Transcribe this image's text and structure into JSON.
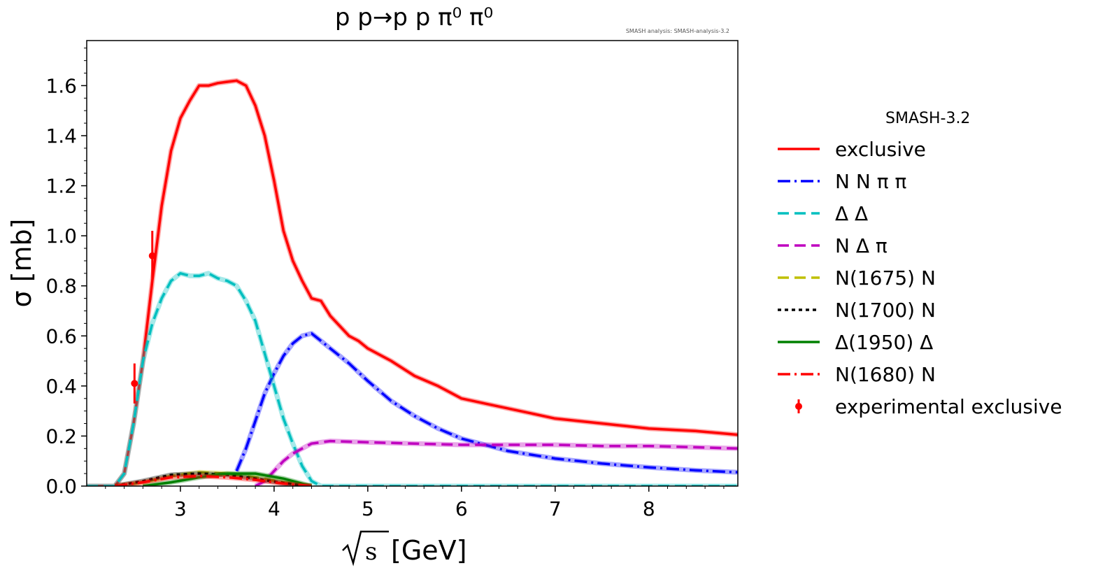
{
  "chart_data": {
    "type": "line",
    "title": "p p→p p π⁰ π⁰",
    "watermark": "SMASH analysis: SMASH-analysis-3.2",
    "xlabel_prefix": "√s",
    "xlabel_unit": "[GeV]",
    "ylabel": "σ [mb]",
    "xlim": [
      2.0,
      8.95
    ],
    "ylim": [
      0.0,
      1.78
    ],
    "xticks": [
      3,
      4,
      5,
      6,
      7,
      8
    ],
    "yticks": [
      0.0,
      0.2,
      0.4,
      0.6,
      0.8,
      1.0,
      1.2,
      1.4,
      1.6
    ],
    "ytick_labels": [
      "0.0",
      "0.2",
      "0.4",
      "0.6",
      "0.8",
      "1.0",
      "1.2",
      "1.4",
      "1.6"
    ],
    "legend_title": "SMASH-3.2",
    "legend_position": "right, outside plot",
    "series": [
      {
        "name": "exclusive",
        "color": "#ff0000",
        "style": "solid",
        "x": [
          2.0,
          2.3,
          2.4,
          2.5,
          2.6,
          2.7,
          2.8,
          2.9,
          3.0,
          3.1,
          3.2,
          3.3,
          3.4,
          3.5,
          3.6,
          3.7,
          3.8,
          3.9,
          4.0,
          4.1,
          4.2,
          4.3,
          4.4,
          4.5,
          4.6,
          4.7,
          4.8,
          4.9,
          5.0,
          5.25,
          5.5,
          5.75,
          6.0,
          6.25,
          6.5,
          6.75,
          7.0,
          7.5,
          8.0,
          8.5,
          8.95
        ],
        "y": [
          0.0,
          0.0,
          0.05,
          0.25,
          0.5,
          0.82,
          1.12,
          1.34,
          1.47,
          1.54,
          1.6,
          1.6,
          1.61,
          1.615,
          1.62,
          1.6,
          1.52,
          1.4,
          1.22,
          1.02,
          0.9,
          0.82,
          0.75,
          0.74,
          0.68,
          0.64,
          0.6,
          0.58,
          0.55,
          0.5,
          0.44,
          0.4,
          0.35,
          0.33,
          0.31,
          0.29,
          0.27,
          0.25,
          0.23,
          0.22,
          0.205
        ]
      },
      {
        "name": "N N π π",
        "color": "#0000ff",
        "style": "dashdot",
        "x": [
          3.6,
          3.7,
          3.8,
          3.9,
          4.0,
          4.1,
          4.2,
          4.3,
          4.4,
          4.5,
          4.6,
          4.8,
          5.0,
          5.25,
          5.5,
          5.75,
          6.0,
          6.5,
          7.0,
          7.5,
          8.0,
          8.5,
          8.95
        ],
        "y": [
          0.06,
          0.15,
          0.26,
          0.37,
          0.45,
          0.52,
          0.57,
          0.6,
          0.61,
          0.58,
          0.55,
          0.49,
          0.42,
          0.34,
          0.28,
          0.23,
          0.19,
          0.14,
          0.11,
          0.09,
          0.075,
          0.063,
          0.055
        ]
      },
      {
        "name": "Δ Δ",
        "color": "#00bfbf",
        "style": "dashed",
        "x": [
          2.0,
          2.3,
          2.4,
          2.5,
          2.6,
          2.7,
          2.8,
          2.9,
          3.0,
          3.1,
          3.2,
          3.3,
          3.4,
          3.5,
          3.6,
          3.7,
          3.8,
          3.9,
          4.0,
          4.1,
          4.2,
          4.3,
          4.4,
          4.5,
          8.95
        ],
        "y": [
          0.0,
          0.0,
          0.05,
          0.25,
          0.5,
          0.65,
          0.75,
          0.82,
          0.85,
          0.84,
          0.84,
          0.85,
          0.83,
          0.82,
          0.8,
          0.74,
          0.66,
          0.53,
          0.4,
          0.27,
          0.17,
          0.08,
          0.02,
          0.0,
          0.0
        ]
      },
      {
        "name": "N Δ π",
        "color": "#bf00bf",
        "style": "dashed",
        "x": [
          3.8,
          3.9,
          4.0,
          4.1,
          4.2,
          4.3,
          4.4,
          4.5,
          4.6,
          5.0,
          5.5,
          6.0,
          6.5,
          7.0,
          7.5,
          8.0,
          8.5,
          8.95
        ],
        "y": [
          0.0,
          0.02,
          0.06,
          0.1,
          0.13,
          0.15,
          0.17,
          0.175,
          0.18,
          0.175,
          0.17,
          0.165,
          0.165,
          0.165,
          0.16,
          0.16,
          0.155,
          0.15
        ]
      },
      {
        "name": "N(1675) N",
        "color": "#bfbf00",
        "style": "dashed",
        "x": [
          2.3,
          2.6,
          2.9,
          3.2,
          3.5,
          3.8,
          4.1,
          4.4
        ],
        "y": [
          0.0,
          0.015,
          0.04,
          0.055,
          0.05,
          0.035,
          0.015,
          0.0
        ]
      },
      {
        "name": "N(1700) N",
        "color": "#000000",
        "style": "dotted",
        "x": [
          2.3,
          2.6,
          2.9,
          3.2,
          3.5,
          3.8,
          4.1,
          4.4
        ],
        "y": [
          0.0,
          0.02,
          0.045,
          0.05,
          0.045,
          0.03,
          0.012,
          0.0
        ]
      },
      {
        "name": "Δ(1950) Δ",
        "color": "#008000",
        "style": "solid",
        "x": [
          2.6,
          2.9,
          3.2,
          3.5,
          3.8,
          4.1,
          4.4
        ],
        "y": [
          0.0,
          0.015,
          0.035,
          0.05,
          0.05,
          0.03,
          0.0
        ]
      },
      {
        "name": "N(1680) N",
        "color": "#ff0000",
        "style": "dashdot",
        "x": [
          2.3,
          2.6,
          2.9,
          3.2,
          3.5,
          3.8,
          4.1,
          4.4
        ],
        "y": [
          0.0,
          0.015,
          0.035,
          0.04,
          0.035,
          0.025,
          0.01,
          0.0
        ]
      }
    ],
    "experimental": {
      "name": "experimental exclusive",
      "color": "#ff0000",
      "points": [
        {
          "x": 2.51,
          "y": 0.41,
          "err": 0.08
        },
        {
          "x": 2.7,
          "y": 0.92,
          "err": 0.1
        }
      ]
    }
  }
}
